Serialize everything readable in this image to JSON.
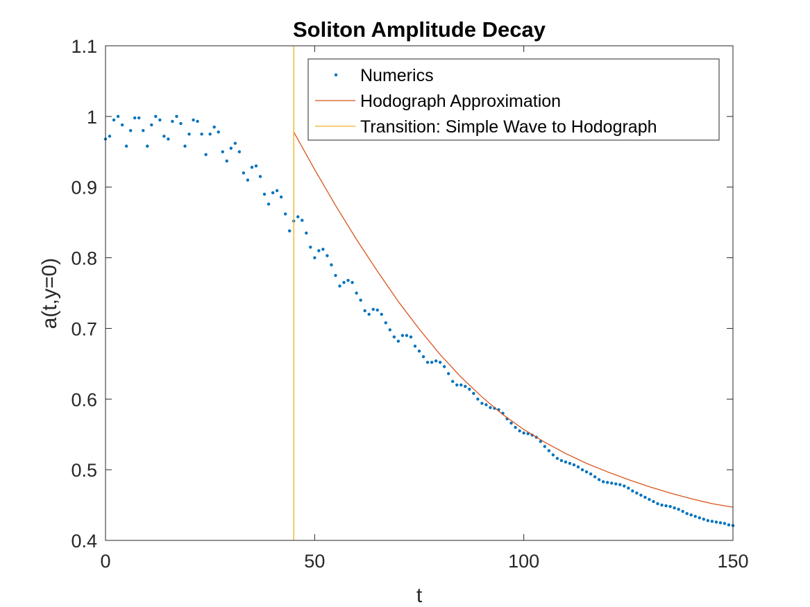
{
  "chart_data": {
    "type": "line",
    "title": "Soliton Amplitude Decay",
    "xlabel": "t",
    "ylabel": "a(t,y=0)",
    "xlim": [
      0,
      150
    ],
    "ylim": [
      0.4,
      1.1
    ],
    "x_ticks": [
      "0",
      "50",
      "100",
      "150"
    ],
    "y_ticks": [
      "0.4",
      "0.5",
      "0.6",
      "0.7",
      "0.8",
      "0.9",
      "1",
      "1.1"
    ],
    "x_tick_values": [
      0,
      50,
      100,
      150
    ],
    "y_tick_values": [
      0.4,
      0.5,
      0.6,
      0.7,
      0.8,
      0.9,
      1.0,
      1.1
    ],
    "grid": false,
    "legend_position": "top-right",
    "series": [
      {
        "name": "Numerics",
        "style": "dots",
        "color": "#0072BD",
        "x": [
          0,
          1,
          2,
          3,
          4,
          5,
          6,
          7,
          8,
          9,
          10,
          11,
          12,
          13,
          14,
          15,
          16,
          17,
          18,
          19,
          20,
          21,
          22,
          23,
          24,
          25,
          26,
          27,
          28,
          29,
          30,
          31,
          32,
          33,
          34,
          35,
          36,
          37,
          38,
          39,
          40,
          41,
          42,
          43,
          44,
          45,
          46,
          47,
          48,
          49,
          50,
          51,
          52,
          53,
          54,
          55,
          56,
          57,
          58,
          59,
          60,
          61,
          62,
          63,
          64,
          65,
          66,
          67,
          68,
          69,
          70,
          71,
          72,
          73,
          74,
          75,
          76,
          77,
          78,
          79,
          80,
          81,
          82,
          83,
          84,
          85,
          86,
          87,
          88,
          89,
          90,
          91,
          92,
          93,
          94,
          95,
          96,
          97,
          98,
          99,
          100,
          101,
          102,
          103,
          104,
          105,
          106,
          107,
          108,
          109,
          110,
          111,
          112,
          113,
          114,
          115,
          116,
          117,
          118,
          119,
          120,
          121,
          122,
          123,
          124,
          125,
          126,
          127,
          128,
          129,
          130,
          131,
          132,
          133,
          134,
          135,
          136,
          137,
          138,
          139,
          140,
          141,
          142,
          143,
          144,
          145,
          146,
          147,
          148,
          149,
          150
        ],
        "y": [
          0.968,
          0.972,
          0.995,
          1.0,
          0.988,
          0.958,
          0.98,
          0.998,
          0.998,
          0.98,
          0.958,
          0.988,
          1.0,
          0.995,
          0.972,
          0.968,
          0.993,
          1.0,
          0.99,
          0.958,
          0.975,
          0.995,
          0.993,
          0.975,
          0.946,
          0.975,
          0.985,
          0.978,
          0.95,
          0.937,
          0.955,
          0.962,
          0.95,
          0.92,
          0.91,
          0.928,
          0.93,
          0.915,
          0.89,
          0.876,
          0.892,
          0.895,
          0.886,
          0.862,
          0.838,
          0.852,
          0.858,
          0.853,
          0.835,
          0.815,
          0.8,
          0.81,
          0.812,
          0.803,
          0.79,
          0.775,
          0.76,
          0.765,
          0.768,
          0.765,
          0.75,
          0.74,
          0.725,
          0.72,
          0.727,
          0.726,
          0.72,
          0.708,
          0.698,
          0.688,
          0.682,
          0.69,
          0.69,
          0.688,
          0.675,
          0.668,
          0.66,
          0.652,
          0.652,
          0.654,
          0.652,
          0.646,
          0.636,
          0.625,
          0.62,
          0.62,
          0.618,
          0.614,
          0.608,
          0.6,
          0.594,
          0.592,
          0.588,
          0.587,
          0.585,
          0.58,
          0.572,
          0.566,
          0.56,
          0.555,
          0.552,
          0.551,
          0.549,
          0.546,
          0.54,
          0.533,
          0.527,
          0.521,
          0.516,
          0.513,
          0.511,
          0.509,
          0.507,
          0.504,
          0.5,
          0.497,
          0.494,
          0.49,
          0.486,
          0.483,
          0.482,
          0.481,
          0.48,
          0.479,
          0.477,
          0.474,
          0.47,
          0.467,
          0.464,
          0.461,
          0.458,
          0.455,
          0.452,
          0.45,
          0.449,
          0.448,
          0.446,
          0.444,
          0.441,
          0.438,
          0.436,
          0.434,
          0.432,
          0.43,
          0.428,
          0.427,
          0.426,
          0.425,
          0.424,
          0.422,
          0.421
        ]
      },
      {
        "name": "Hodograph Approximation",
        "style": "line",
        "color": "#D95319",
        "x": [
          45,
          50,
          55,
          60,
          65,
          70,
          75,
          80,
          85,
          90,
          95,
          100,
          105,
          110,
          115,
          120,
          125,
          130,
          135,
          140,
          145,
          150
        ],
        "y": [
          0.978,
          0.925,
          0.874,
          0.826,
          0.781,
          0.738,
          0.699,
          0.663,
          0.631,
          0.603,
          0.578,
          0.557,
          0.539,
          0.523,
          0.509,
          0.497,
          0.486,
          0.476,
          0.467,
          0.459,
          0.452,
          0.447
        ]
      },
      {
        "name": "Transition: Simple Wave to Hodograph",
        "style": "vline",
        "color": "#EDB120",
        "x": [
          45,
          45
        ],
        "y": [
          0.4,
          1.1
        ]
      }
    ]
  }
}
